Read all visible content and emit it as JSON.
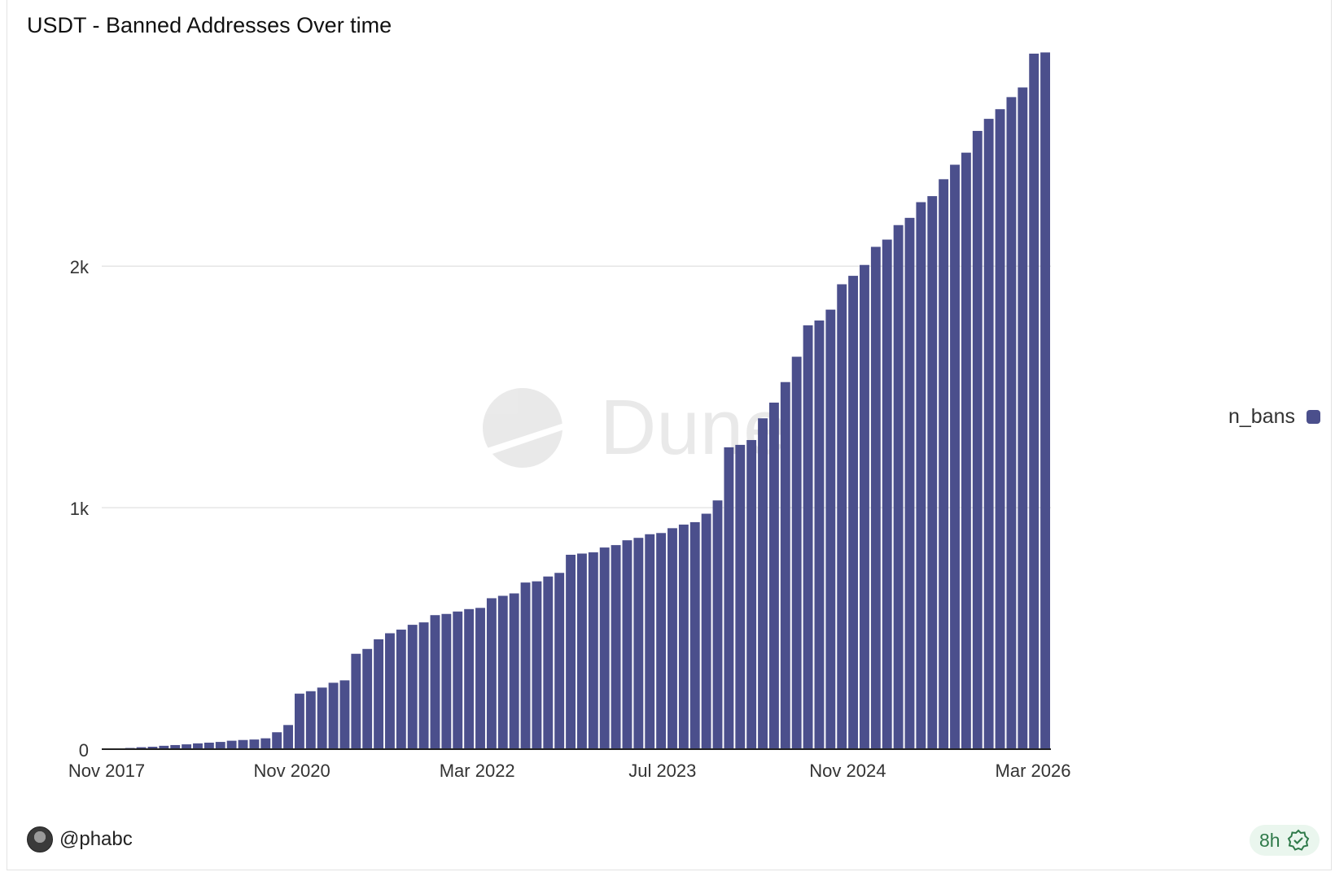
{
  "title": "USDT - Banned Addresses Over time",
  "author": "@phabc",
  "refresh_badge": "8h",
  "watermark": "Dune",
  "colors": {
    "bar": "#4b4f8c",
    "grid": "#e6e6e6",
    "badge_bg": "#eaf6ee",
    "badge_text": "#2f7a4a"
  },
  "icons": {
    "avatar": "user-avatar",
    "badge_icon": "verified-check-icon"
  },
  "legend": {
    "label": "n_bans"
  },
  "chart_data": {
    "type": "bar",
    "title": "USDT - Banned Addresses Over time",
    "xlabel": "",
    "ylabel": "",
    "x_tick_labels": [
      "Nov 2017",
      "Nov 2020",
      "Mar 2022",
      "Jul 2023",
      "Nov 2024",
      "Mar 2026"
    ],
    "y_tick_labels": [
      "0",
      "1k",
      "2k"
    ],
    "ylim": [
      0,
      2900
    ],
    "grid": true,
    "legend_position": "right",
    "series": [
      {
        "name": "n_bans",
        "values": [
          2,
          3,
          5,
          8,
          10,
          14,
          17,
          20,
          24,
          27,
          30,
          35,
          38,
          40,
          45,
          70,
          100,
          230,
          240,
          255,
          275,
          285,
          395,
          415,
          455,
          480,
          495,
          515,
          525,
          555,
          560,
          570,
          580,
          585,
          625,
          635,
          645,
          690,
          695,
          715,
          730,
          805,
          810,
          815,
          835,
          845,
          865,
          875,
          890,
          895,
          915,
          930,
          940,
          975,
          1030,
          1250,
          1260,
          1280,
          1370,
          1435,
          1520,
          1625,
          1755,
          1775,
          1820,
          1925,
          1960,
          2005,
          2080,
          2110,
          2170,
          2200,
          2265,
          2290,
          2360,
          2420,
          2470,
          2560,
          2610,
          2650,
          2700,
          2740,
          2880,
          2885
        ]
      }
    ]
  }
}
